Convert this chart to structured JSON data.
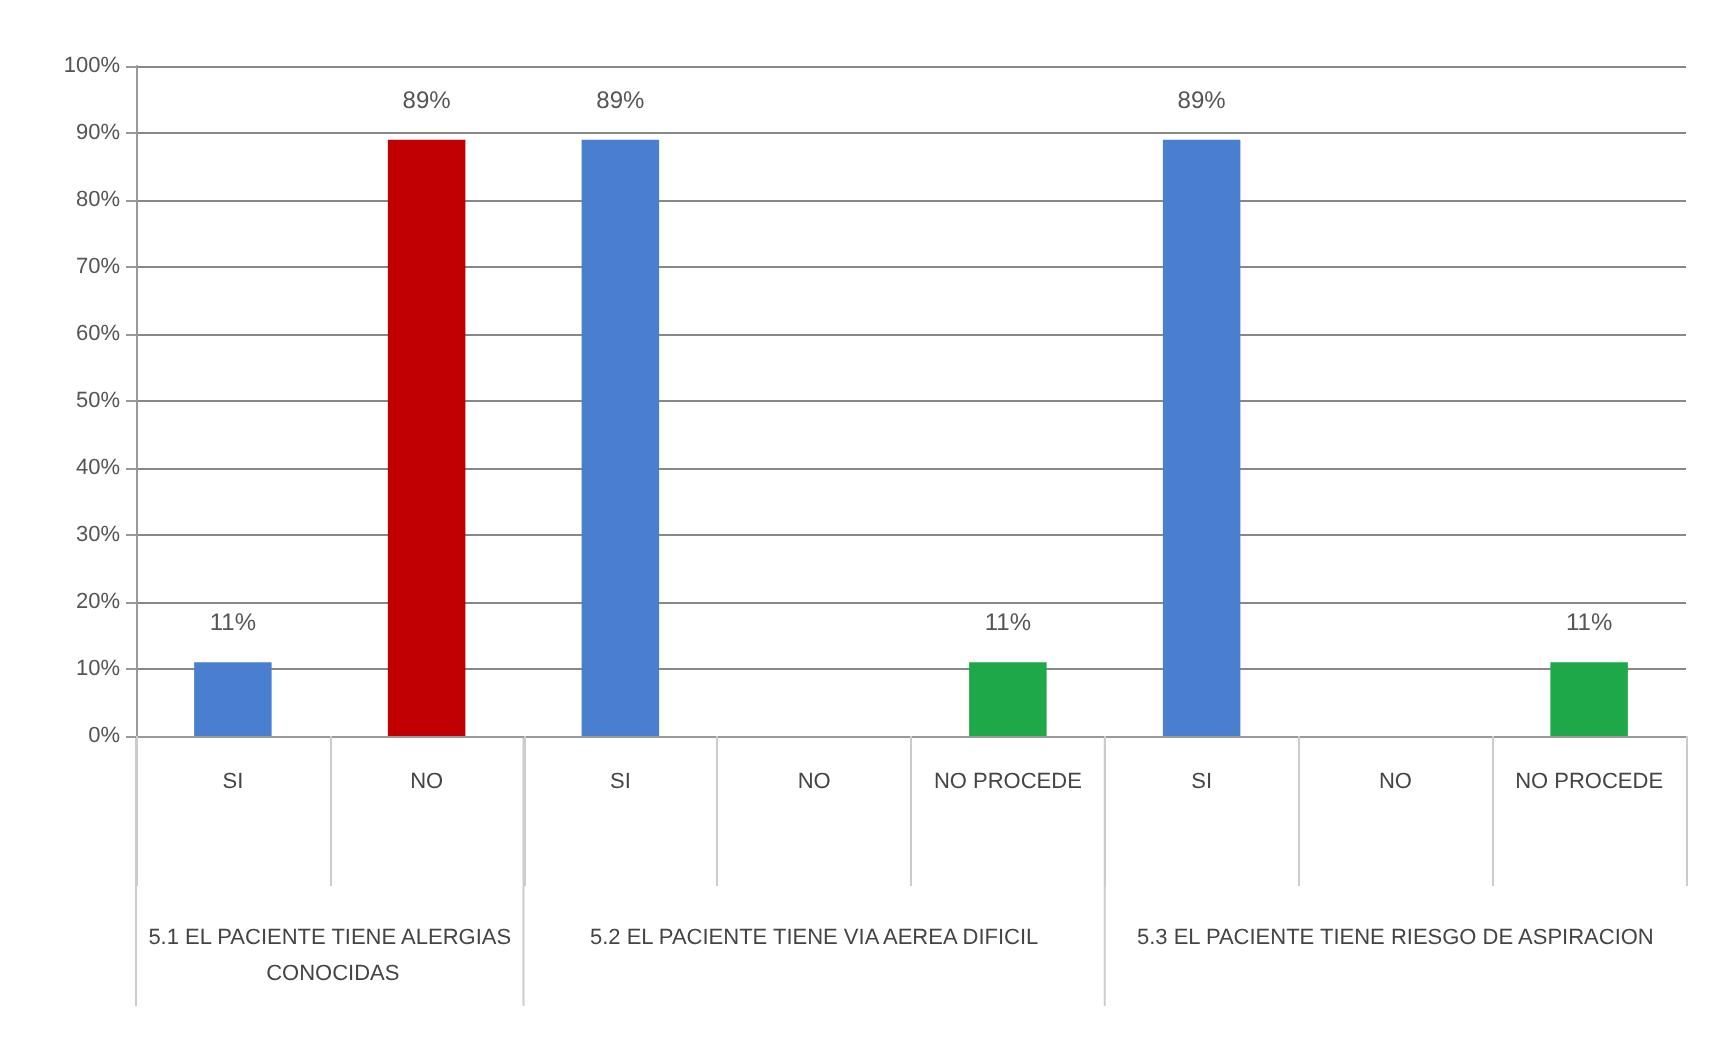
{
  "chart_data": {
    "type": "bar",
    "categories": [
      "SI",
      "NO",
      "SI",
      "NO",
      "NO PROCEDE",
      "SI",
      "NO",
      "NO PROCEDE"
    ],
    "values": [
      11,
      89,
      89,
      0,
      11,
      89,
      0,
      11
    ],
    "colors": [
      "#4a7fd0",
      "#c00000",
      "#4a7fd0",
      "#c00000",
      "#1ea84a",
      "#4a7fd0",
      "#c00000",
      "#1ea84a"
    ],
    "value_labels": [
      "11%",
      "89%",
      "89%",
      null,
      "11%",
      "89%",
      null,
      "11%"
    ],
    "ylim": [
      0,
      100
    ],
    "yticks": [
      {
        "value": 0,
        "label": "0%"
      },
      {
        "value": 10,
        "label": "10%"
      },
      {
        "value": 20,
        "label": "20%"
      },
      {
        "value": 30,
        "label": "30%"
      },
      {
        "value": 40,
        "label": "40%"
      },
      {
        "value": 50,
        "label": "50%"
      },
      {
        "value": 60,
        "label": "60%"
      },
      {
        "value": 70,
        "label": "70%"
      },
      {
        "value": 80,
        "label": "80%"
      },
      {
        "value": 90,
        "label": "90%"
      },
      {
        "value": 100,
        "label": "100%"
      }
    ],
    "grid": "y",
    "annotations": [
      "5.1 EL PACIENTE TIENE ALERGIAS CONOCIDAS",
      "5.2 EL PACIENTE TIENE VIA AEREA DIFICIL",
      "5.3 EL PACIENTE TIENE RIESGO DE ASPIRACION"
    ]
  }
}
